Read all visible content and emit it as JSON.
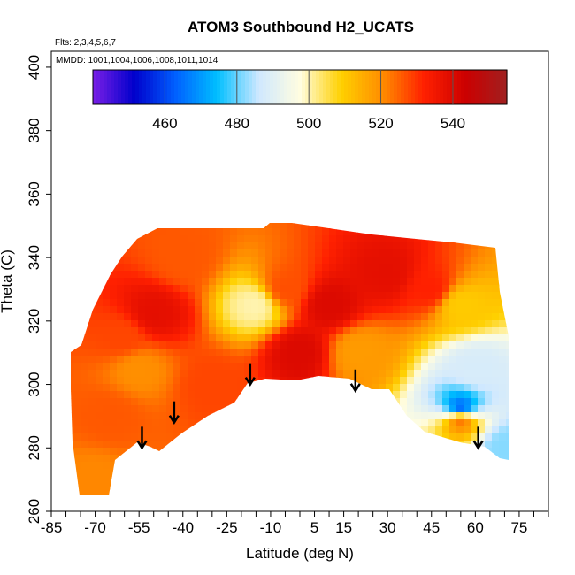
{
  "chart_data": {
    "type": "heatmap",
    "title": "ATOM3 Southbound H2_UCATS",
    "subtitle_flights": "Flts: 2,3,4,5,6,7",
    "subtitle_dates": "MMDD: 1001,1004,1006,1008,1011,1014",
    "xlabel": "Latitude (deg N)",
    "ylabel": "Theta (C)",
    "xlim": [
      -85,
      85
    ],
    "ylim": [
      260,
      405
    ],
    "x_tick_labels": [
      "-85",
      "-70",
      "-55",
      "-40",
      "-25",
      "-10",
      "5",
      "15",
      "30",
      "45",
      "60",
      "75"
    ],
    "x_tick_values": [
      -85,
      -70,
      -55,
      -40,
      -25,
      -10,
      5,
      15,
      30,
      45,
      60,
      75
    ],
    "y_tick_labels": [
      "260",
      "280",
      "300",
      "320",
      "340",
      "360",
      "380",
      "400"
    ],
    "y_tick_values": [
      260,
      280,
      300,
      320,
      340,
      360,
      380,
      400
    ],
    "colorbar": {
      "range": [
        440,
        555
      ],
      "tick_labels": [
        "460",
        "480",
        "500",
        "520",
        "540"
      ],
      "tick_values": [
        460,
        480,
        500,
        520,
        540
      ],
      "colors": [
        "#7a1fe6",
        "#0000cc",
        "#0060ff",
        "#00bfff",
        "#cfe8ff",
        "#fffde0",
        "#ffd000",
        "#ff8c00",
        "#ff2000",
        "#cc0000",
        "#a02020"
      ]
    },
    "grid": false,
    "arrows_latitude": [
      -54,
      -43,
      -17,
      19,
      61
    ],
    "arrows_theta": [
      285,
      293,
      305,
      303,
      285
    ],
    "field_samples": [
      {
        "lat": -70,
        "theta": 270,
        "value": 521
      },
      {
        "lat": -65,
        "theta": 290,
        "value": 526
      },
      {
        "lat": -60,
        "theta": 315,
        "value": 528
      },
      {
        "lat": -55,
        "theta": 305,
        "value": 520
      },
      {
        "lat": -50,
        "theta": 322,
        "value": 538
      },
      {
        "lat": -40,
        "theta": 340,
        "value": 526
      },
      {
        "lat": -30,
        "theta": 300,
        "value": 528
      },
      {
        "lat": -15,
        "theta": 325,
        "value": 500
      },
      {
        "lat": -5,
        "theta": 330,
        "value": 527
      },
      {
        "lat": 0,
        "theta": 310,
        "value": 540
      },
      {
        "lat": 10,
        "theta": 325,
        "value": 540
      },
      {
        "lat": 20,
        "theta": 310,
        "value": 518
      },
      {
        "lat": 30,
        "theta": 335,
        "value": 538
      },
      {
        "lat": 45,
        "theta": 330,
        "value": 532
      },
      {
        "lat": 55,
        "theta": 325,
        "value": 510
      },
      {
        "lat": 60,
        "theta": 305,
        "value": 488
      },
      {
        "lat": 55,
        "theta": 292,
        "value": 462
      },
      {
        "lat": 55,
        "theta": 289,
        "value": 525
      },
      {
        "lat": 70,
        "theta": 280,
        "value": 482
      }
    ]
  }
}
